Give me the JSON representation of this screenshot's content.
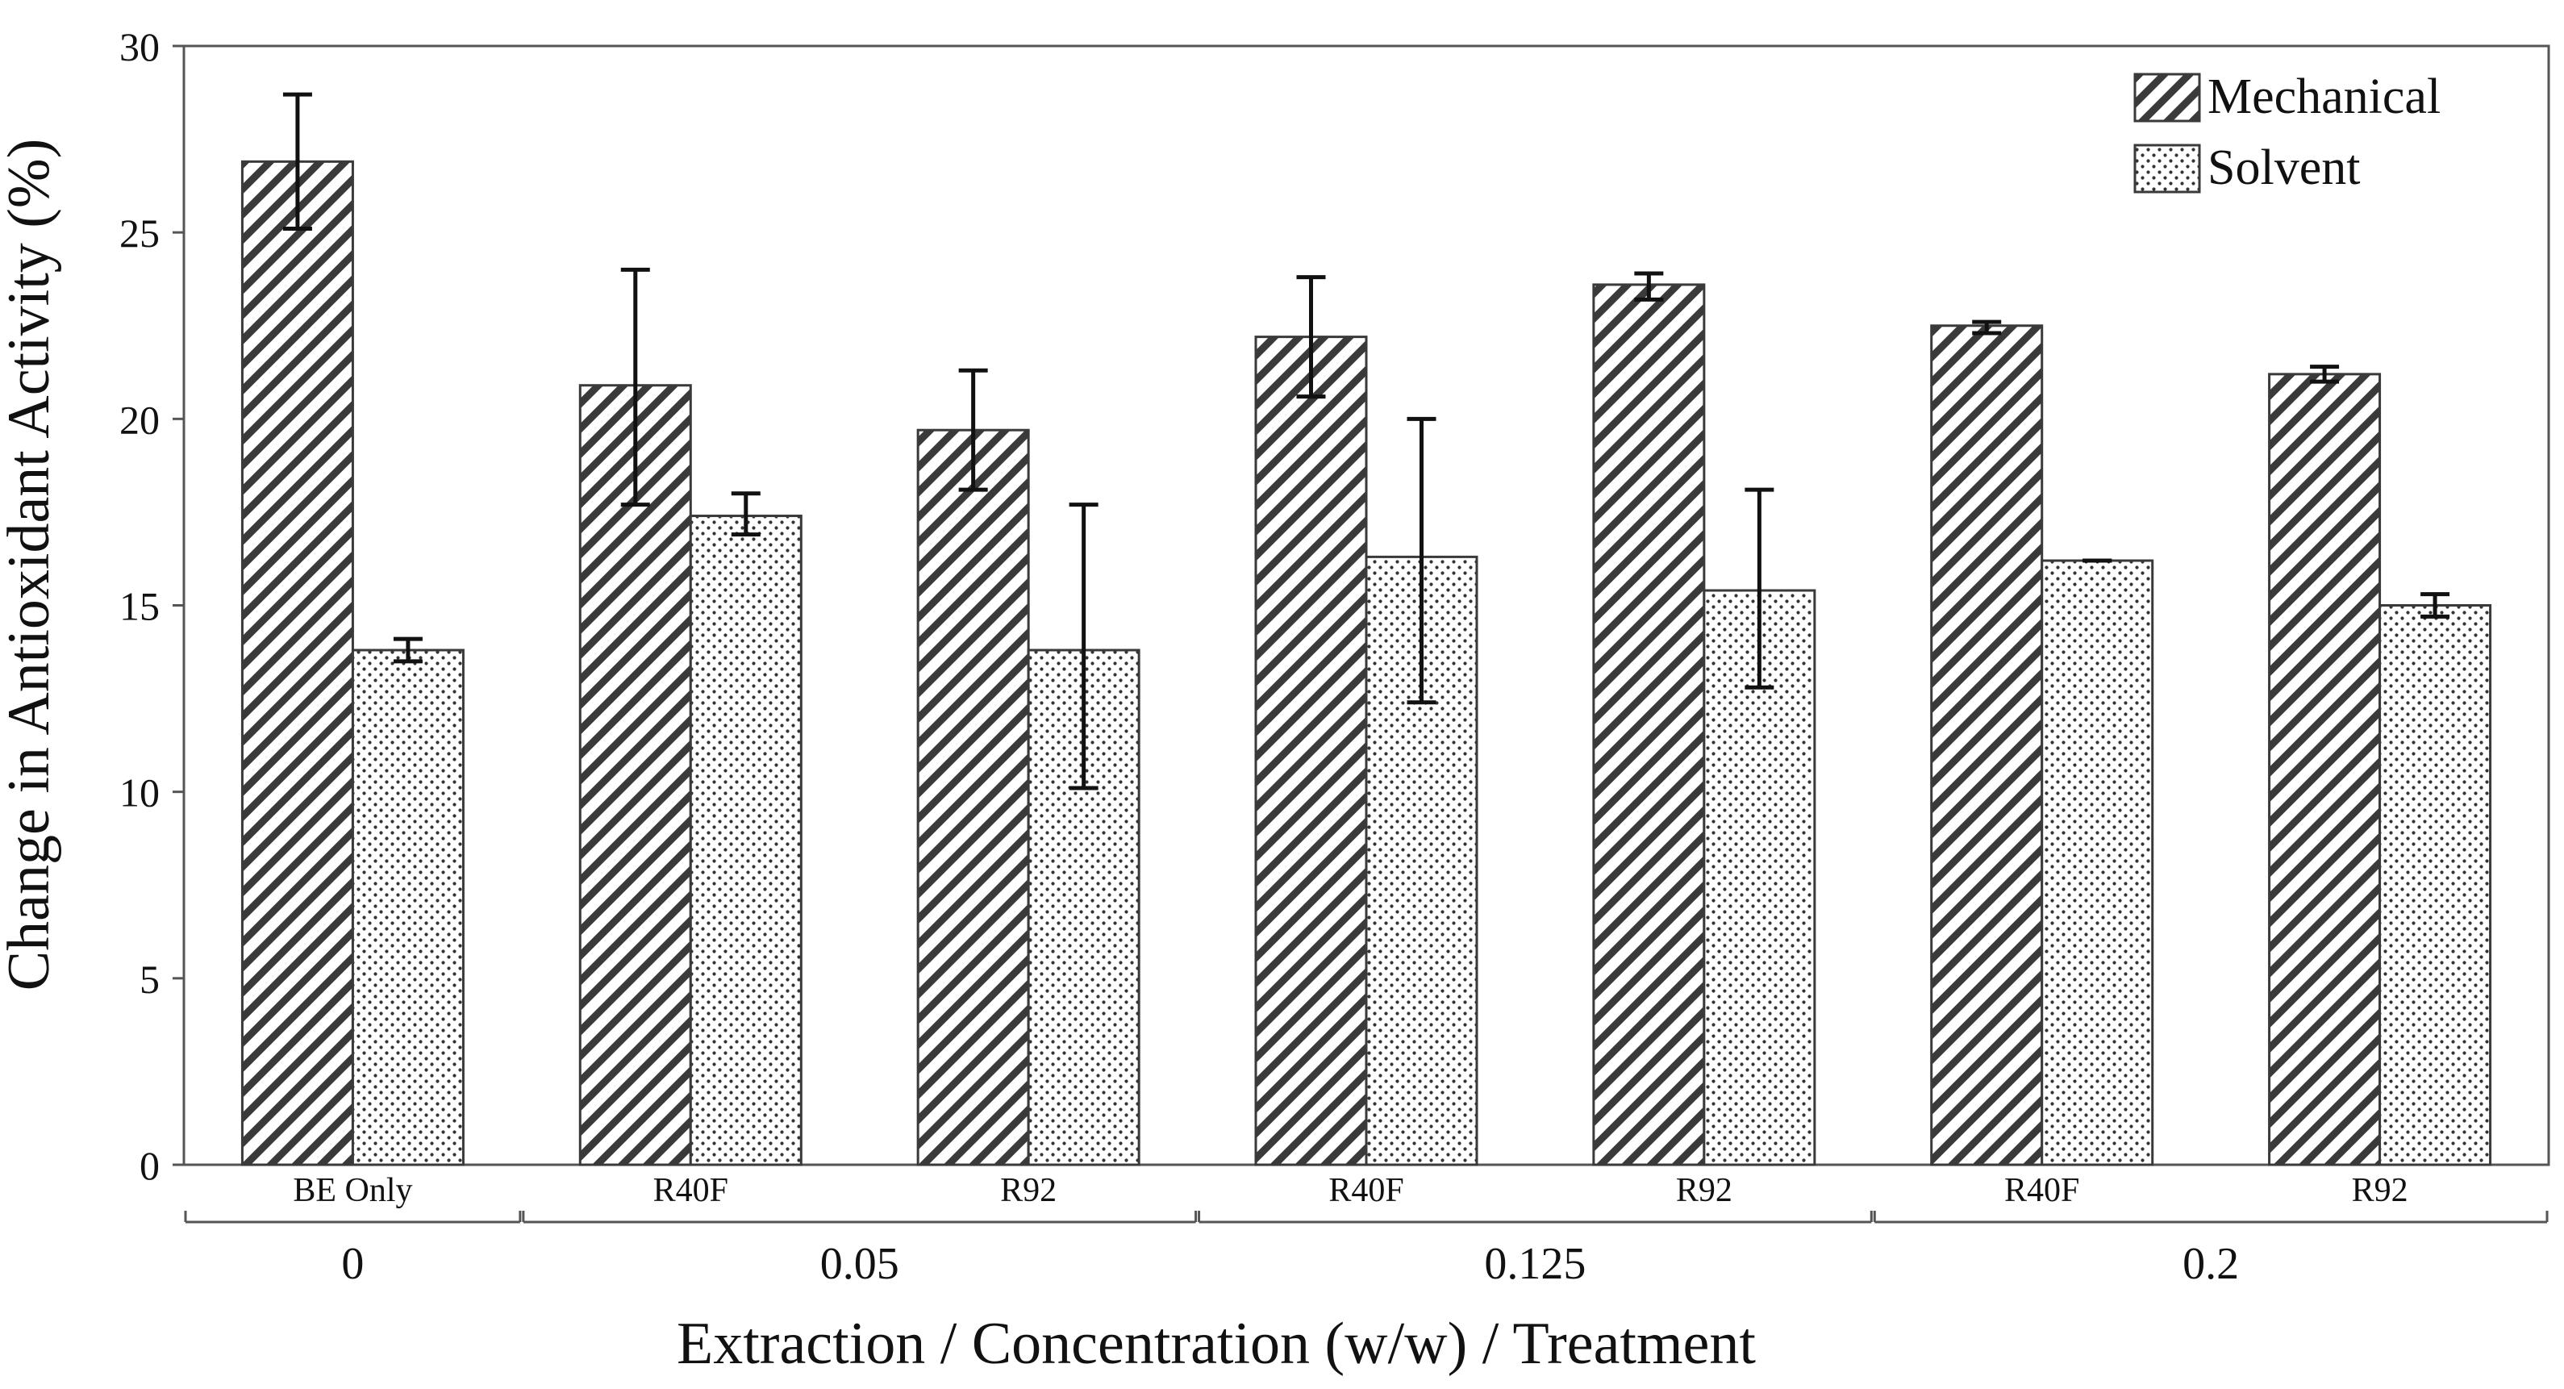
{
  "chart_data": {
    "type": "bar",
    "title": "",
    "xlabel": "Extraction / Concentration (w/w) / Treatment",
    "ylabel": "Change in Antioxidant Activity (%)",
    "ylim": [
      0,
      30
    ],
    "yticks": [
      0,
      5,
      10,
      15,
      20,
      25,
      30
    ],
    "grid": false,
    "legend_position": "top-right",
    "categories": [
      "BE Only",
      "R40F",
      "R92",
      "R40F",
      "R92",
      "R40F",
      "R92"
    ],
    "groups": [
      {
        "label": "0",
        "span": [
          0,
          0
        ]
      },
      {
        "label": "0.05",
        "span": [
          1,
          2
        ]
      },
      {
        "label": "0.125",
        "span": [
          3,
          4
        ]
      },
      {
        "label": "0.2",
        "span": [
          5,
          6
        ]
      }
    ],
    "series": [
      {
        "name": "Mechanical",
        "pattern": "diagonal-hatch",
        "values": [
          26.9,
          20.9,
          19.7,
          22.2,
          23.6,
          22.5,
          21.2
        ],
        "error_low": [
          25.1,
          17.7,
          18.1,
          20.6,
          23.2,
          22.3,
          21.0
        ],
        "error_high": [
          28.7,
          24.0,
          21.3,
          23.8,
          23.9,
          22.6,
          21.4
        ]
      },
      {
        "name": "Solvent",
        "pattern": "dots",
        "values": [
          13.8,
          17.4,
          13.8,
          16.3,
          15.4,
          16.2,
          15.0
        ],
        "error_low": [
          13.5,
          16.9,
          10.1,
          12.4,
          12.8,
          16.2,
          14.7
        ],
        "error_high": [
          14.1,
          18.0,
          17.7,
          20.0,
          18.1,
          16.2,
          15.3
        ]
      }
    ],
    "colors": {
      "bar_edge": "#3a3a3a",
      "hatch": "#3a3a3a",
      "error_bar": "#111111",
      "axis": "#555555"
    }
  }
}
